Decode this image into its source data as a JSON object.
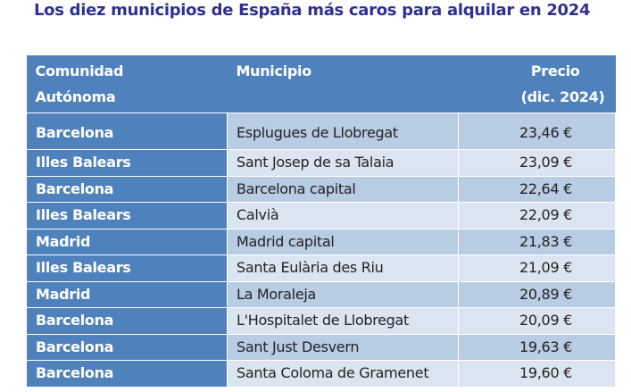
{
  "title": "Los diez municipios de España más caros para alquilar en 2024",
  "colors": {
    "title": "#2e3192",
    "header": "#4f81bd",
    "row_dark": "#b8cce4",
    "row_light": "#dbe5f1"
  },
  "table": {
    "headers": [
      "Comunidad Autónoma",
      "Municipio",
      "Precio (dic. 2024)"
    ],
    "header_lines": [
      [
        "Comunidad",
        "Autónoma"
      ],
      [
        "Municipio"
      ],
      [
        "Precio",
        "(dic. 2024)"
      ]
    ],
    "rows": [
      {
        "comunidad": "Barcelona",
        "municipio": "Esplugues de Llobregat",
        "precio": "23,46 €"
      },
      {
        "comunidad": "Illes Balears",
        "municipio": "Sant Josep de sa Talaia",
        "precio": "23,09 €"
      },
      {
        "comunidad": "Barcelona",
        "municipio": "Barcelona capital",
        "precio": "22,64 €"
      },
      {
        "comunidad": "Illes Balears",
        "municipio": "Calvià",
        "precio": "22,09 €"
      },
      {
        "comunidad": "Madrid",
        "municipio": "Madrid capital",
        "precio": "21,83 €"
      },
      {
        "comunidad": "Illes Balears",
        "municipio": "Santa Eulària des Riu",
        "precio": "21,09 €"
      },
      {
        "comunidad": "Madrid",
        "municipio": "La Moraleja",
        "precio": "20,89 €"
      },
      {
        "comunidad": "Barcelona",
        "municipio": "L'Hospitalet de Llobregat",
        "precio": "20,09 €"
      },
      {
        "comunidad": "Barcelona",
        "municipio": "Sant Just Desvern",
        "precio": "19,63 €"
      },
      {
        "comunidad": "Barcelona",
        "municipio": "Santa Coloma de Gramenet",
        "precio": "19,60 €"
      }
    ]
  }
}
